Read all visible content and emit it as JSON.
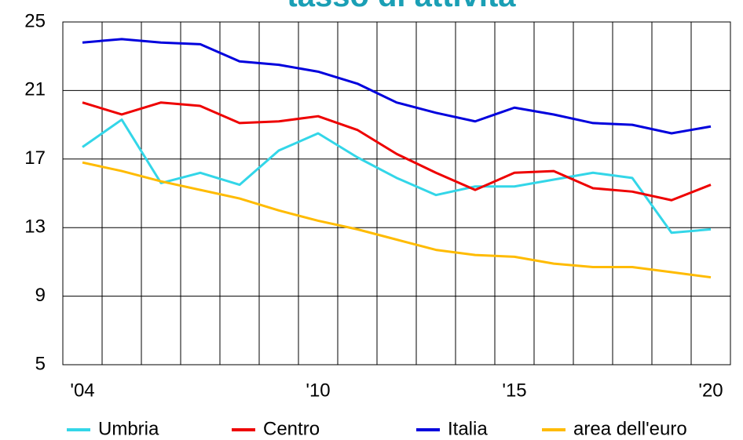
{
  "chart_data": {
    "type": "line",
    "title": "tasso di attività",
    "categories": [
      "'04",
      null,
      null,
      null,
      null,
      null,
      "'10",
      null,
      null,
      null,
      null,
      "'15",
      null,
      null,
      null,
      null,
      "'20"
    ],
    "series": [
      {
        "name": "Umbria",
        "color": "#33d6e8",
        "values": [
          17.7,
          19.3,
          15.6,
          16.2,
          15.5,
          17.5,
          18.5,
          17.1,
          15.9,
          14.9,
          15.4,
          15.4,
          15.8,
          16.2,
          15.9,
          12.7,
          12.9
        ]
      },
      {
        "name": "Centro",
        "color": "#ee0000",
        "values": [
          20.3,
          19.6,
          20.3,
          20.1,
          19.1,
          19.2,
          19.5,
          18.7,
          17.3,
          16.2,
          15.2,
          16.2,
          16.3,
          15.3,
          15.1,
          14.6,
          15.5
        ]
      },
      {
        "name": "Italia",
        "color": "#0000dd",
        "values": [
          23.8,
          24.0,
          23.8,
          23.7,
          22.7,
          22.5,
          22.1,
          21.4,
          20.3,
          19.7,
          19.2,
          20.0,
          19.6,
          19.1,
          19.0,
          18.5,
          18.9
        ]
      },
      {
        "name": "area dell'euro",
        "color": "#ffbb00",
        "values": [
          16.8,
          16.3,
          15.7,
          15.2,
          14.7,
          14.0,
          13.4,
          12.9,
          12.3,
          11.7,
          11.4,
          11.3,
          10.9,
          10.7,
          10.7,
          10.4,
          10.1
        ]
      }
    ],
    "ylim": [
      5,
      25
    ],
    "yticks": [
      5,
      9,
      13,
      17,
      21,
      25
    ],
    "grid": true,
    "legend": "bottom"
  }
}
